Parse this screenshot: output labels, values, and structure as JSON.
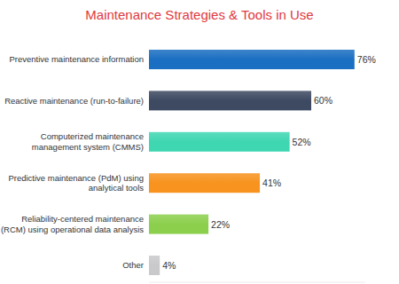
{
  "chart_data": {
    "type": "bar",
    "orientation": "horizontal",
    "title": "Maintenance Strategies & Tools in Use",
    "categories": [
      "Preventive maintenance information",
      "Reactive maintenance (run-to-failure)",
      "Computerized maintenance management system (CMMS)",
      "Predictive maintenance (PdM) using analytical tools",
      "Reliability-centered maintenance (RCM) using operational data analysis",
      "Other"
    ],
    "values": [
      76,
      60,
      52,
      41,
      22,
      4
    ],
    "value_labels": [
      "76%",
      "60%",
      "52%",
      "41%",
      "22%",
      "4%"
    ],
    "colors": [
      "#1b6fc2",
      "#3e4a62",
      "#3fd6b2",
      "#f7931e",
      "#8ccf4d",
      "#c9c9cc"
    ],
    "xlim": [
      0,
      80
    ],
    "data_labels": true,
    "tick_labels": "y",
    "grid": false
  }
}
